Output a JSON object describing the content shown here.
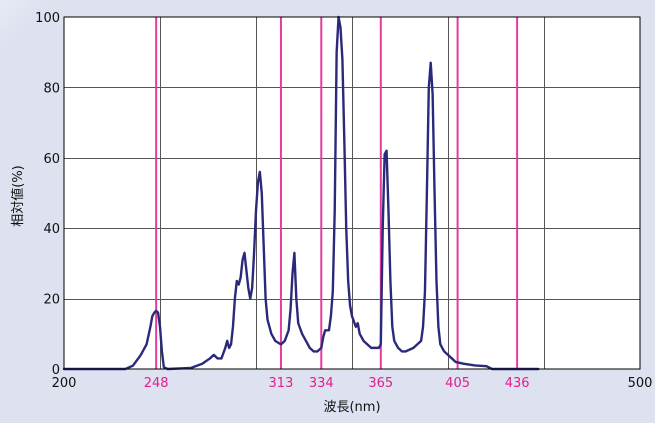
{
  "chart_data": {
    "type": "line",
    "xlabel": "波長(nm)",
    "ylabel": "相対値(%)",
    "xlim": [
      200,
      500
    ],
    "ylim": [
      0,
      100
    ],
    "x_ticks": [
      200,
      250,
      300,
      350,
      400,
      450,
      500
    ],
    "x_tick_labels": [
      "200",
      "",
      "",
      "",
      "",
      "",
      "500"
    ],
    "y_ticks": [
      0,
      20,
      40,
      60,
      80,
      100
    ],
    "y_tick_labels": [
      "0",
      "20",
      "40",
      "60",
      "80",
      "100"
    ],
    "grid": true,
    "marker_lines": [
      {
        "x": 248,
        "label": "248"
      },
      {
        "x": 313,
        "label": "313"
      },
      {
        "x": 334,
        "label": "334"
      },
      {
        "x": 365,
        "label": "365"
      },
      {
        "x": 405,
        "label": "405"
      },
      {
        "x": 436,
        "label": "436"
      }
    ],
    "series": [
      {
        "color": "#2b2a7a",
        "points": [
          [
            200,
            0
          ],
          [
            232,
            0
          ],
          [
            236,
            1
          ],
          [
            240,
            4
          ],
          [
            243,
            7
          ],
          [
            245,
            12
          ],
          [
            246,
            15
          ],
          [
            247,
            16
          ],
          [
            248,
            16.5
          ],
          [
            249,
            16
          ],
          [
            250,
            12
          ],
          [
            251,
            5
          ],
          [
            252,
            0.5
          ],
          [
            254,
            0
          ],
          [
            266,
            0.3
          ],
          [
            272,
            1.5
          ],
          [
            276,
            3
          ],
          [
            278,
            4
          ],
          [
            280,
            3
          ],
          [
            282,
            3
          ],
          [
            284,
            6
          ],
          [
            285,
            8
          ],
          [
            286,
            6
          ],
          [
            287,
            7
          ],
          [
            288,
            12
          ],
          [
            289,
            20
          ],
          [
            290,
            25
          ],
          [
            291,
            24
          ],
          [
            292,
            26
          ],
          [
            293,
            31
          ],
          [
            294,
            33
          ],
          [
            295,
            28
          ],
          [
            296,
            23
          ],
          [
            297,
            20
          ],
          [
            298,
            23
          ],
          [
            299,
            33
          ],
          [
            300,
            45
          ],
          [
            301,
            53
          ],
          [
            302,
            56
          ],
          [
            303,
            50
          ],
          [
            304,
            35
          ],
          [
            305,
            20
          ],
          [
            306,
            14
          ],
          [
            308,
            10
          ],
          [
            310,
            8
          ],
          [
            313,
            7
          ],
          [
            315,
            8
          ],
          [
            317,
            11
          ],
          [
            318,
            17
          ],
          [
            319,
            27
          ],
          [
            320,
            33
          ],
          [
            321,
            20
          ],
          [
            322,
            13
          ],
          [
            324,
            10
          ],
          [
            326,
            8
          ],
          [
            328,
            6
          ],
          [
            330,
            5
          ],
          [
            332,
            5
          ],
          [
            334,
            6
          ],
          [
            335,
            9
          ],
          [
            336,
            11
          ],
          [
            338,
            11
          ],
          [
            339,
            15
          ],
          [
            340,
            22
          ],
          [
            341,
            45
          ],
          [
            342,
            90
          ],
          [
            343,
            100
          ],
          [
            344,
            97
          ],
          [
            345,
            88
          ],
          [
            346,
            65
          ],
          [
            347,
            40
          ],
          [
            348,
            25
          ],
          [
            349,
            18
          ],
          [
            350,
            15
          ],
          [
            352,
            12
          ],
          [
            353,
            13
          ],
          [
            354,
            10
          ],
          [
            356,
            8
          ],
          [
            358,
            7
          ],
          [
            360,
            6
          ],
          [
            362,
            6
          ],
          [
            364,
            6
          ],
          [
            365,
            7
          ],
          [
            366,
            40
          ],
          [
            367,
            61
          ],
          [
            368,
            62
          ],
          [
            369,
            45
          ],
          [
            370,
            25
          ],
          [
            371,
            12
          ],
          [
            372,
            8
          ],
          [
            374,
            6
          ],
          [
            376,
            5
          ],
          [
            378,
            5
          ],
          [
            380,
            5.5
          ],
          [
            382,
            6
          ],
          [
            384,
            7
          ],
          [
            386,
            8
          ],
          [
            387,
            12
          ],
          [
            388,
            22
          ],
          [
            389,
            50
          ],
          [
            390,
            80
          ],
          [
            391,
            87
          ],
          [
            392,
            78
          ],
          [
            393,
            50
          ],
          [
            394,
            25
          ],
          [
            395,
            12
          ],
          [
            396,
            7
          ],
          [
            398,
            5
          ],
          [
            400,
            4
          ],
          [
            402,
            3
          ],
          [
            404,
            2
          ],
          [
            408,
            1.5
          ],
          [
            414,
            1
          ],
          [
            420,
            0.8
          ],
          [
            423,
            0
          ],
          [
            440,
            0
          ],
          [
            447,
            0
          ]
        ]
      }
    ]
  }
}
